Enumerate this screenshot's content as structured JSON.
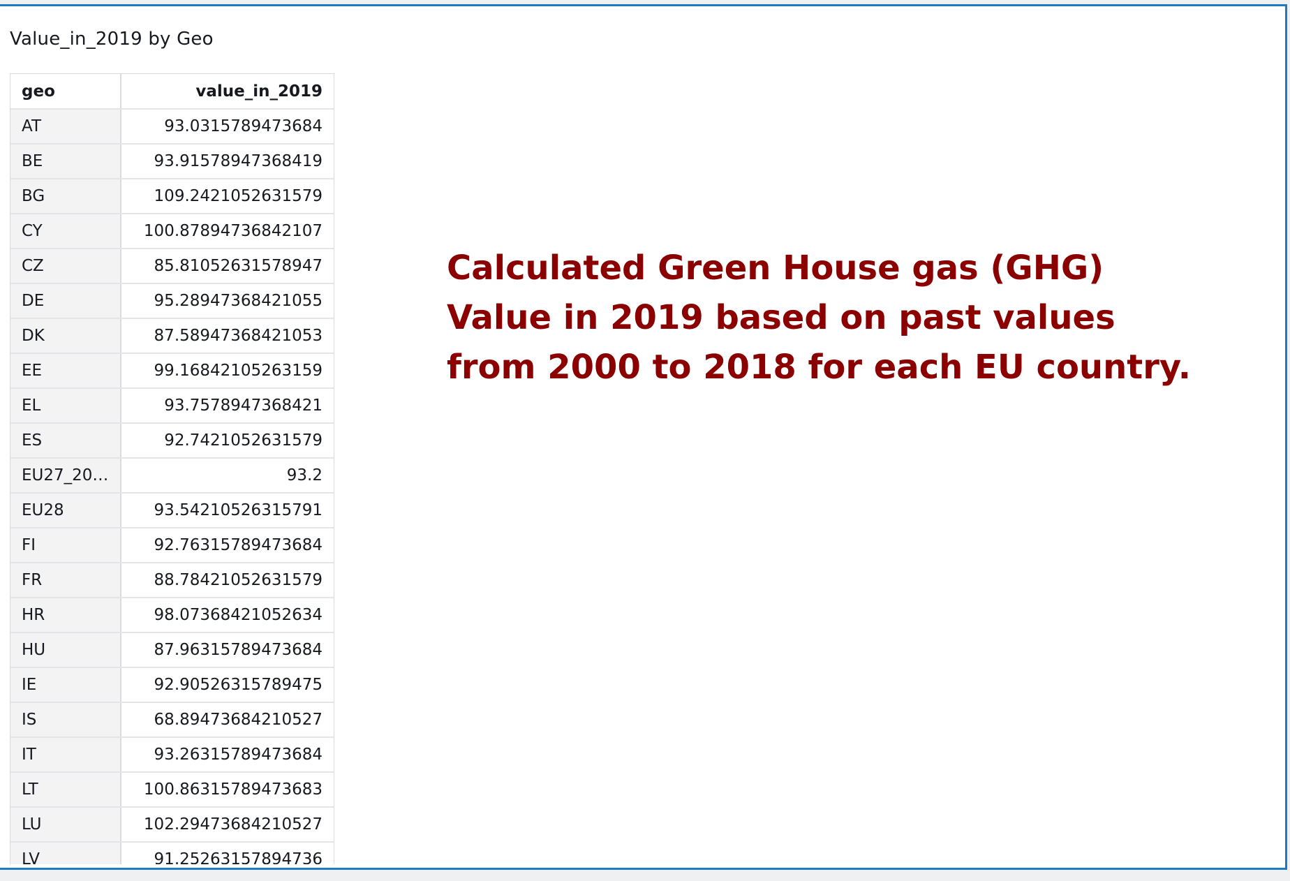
{
  "visual": {
    "title": "Value_in_2019 by Geo",
    "columns": [
      "geo",
      "value_in_2019"
    ],
    "rows": [
      [
        "AT",
        "93.0315789473684"
      ],
      [
        "BE",
        "93.91578947368419"
      ],
      [
        "BG",
        "109.2421052631579"
      ],
      [
        "CY",
        "100.87894736842107"
      ],
      [
        "CZ",
        "85.81052631578947"
      ],
      [
        "DE",
        "95.28947368421055"
      ],
      [
        "DK",
        "87.58947368421053"
      ],
      [
        "EE",
        "99.16842105263159"
      ],
      [
        "EL",
        "93.7578947368421"
      ],
      [
        "ES",
        "92.7421052631579"
      ],
      [
        "EU27_20…",
        "93.2"
      ],
      [
        "EU28",
        "93.54210526315791"
      ],
      [
        "FI",
        "92.76315789473684"
      ],
      [
        "FR",
        "88.78421052631579"
      ],
      [
        "HR",
        "98.07368421052634"
      ],
      [
        "HU",
        "87.96315789473684"
      ],
      [
        "IE",
        "92.90526315789475"
      ],
      [
        "IS",
        "68.89473684210527"
      ],
      [
        "IT",
        "93.26315789473684"
      ],
      [
        "LT",
        "100.86315789473683"
      ],
      [
        "LU",
        "102.29473684210527"
      ],
      [
        "LV",
        "91.25263157894736"
      ]
    ]
  },
  "annotation": {
    "lines": [
      "Calculated Green House gas (GHG)",
      "Value in 2019 based on past values",
      "from 2000 to 2018 for each EU country."
    ],
    "color": "#8b0000"
  },
  "theme": {
    "accent": "#1f7ac4"
  }
}
